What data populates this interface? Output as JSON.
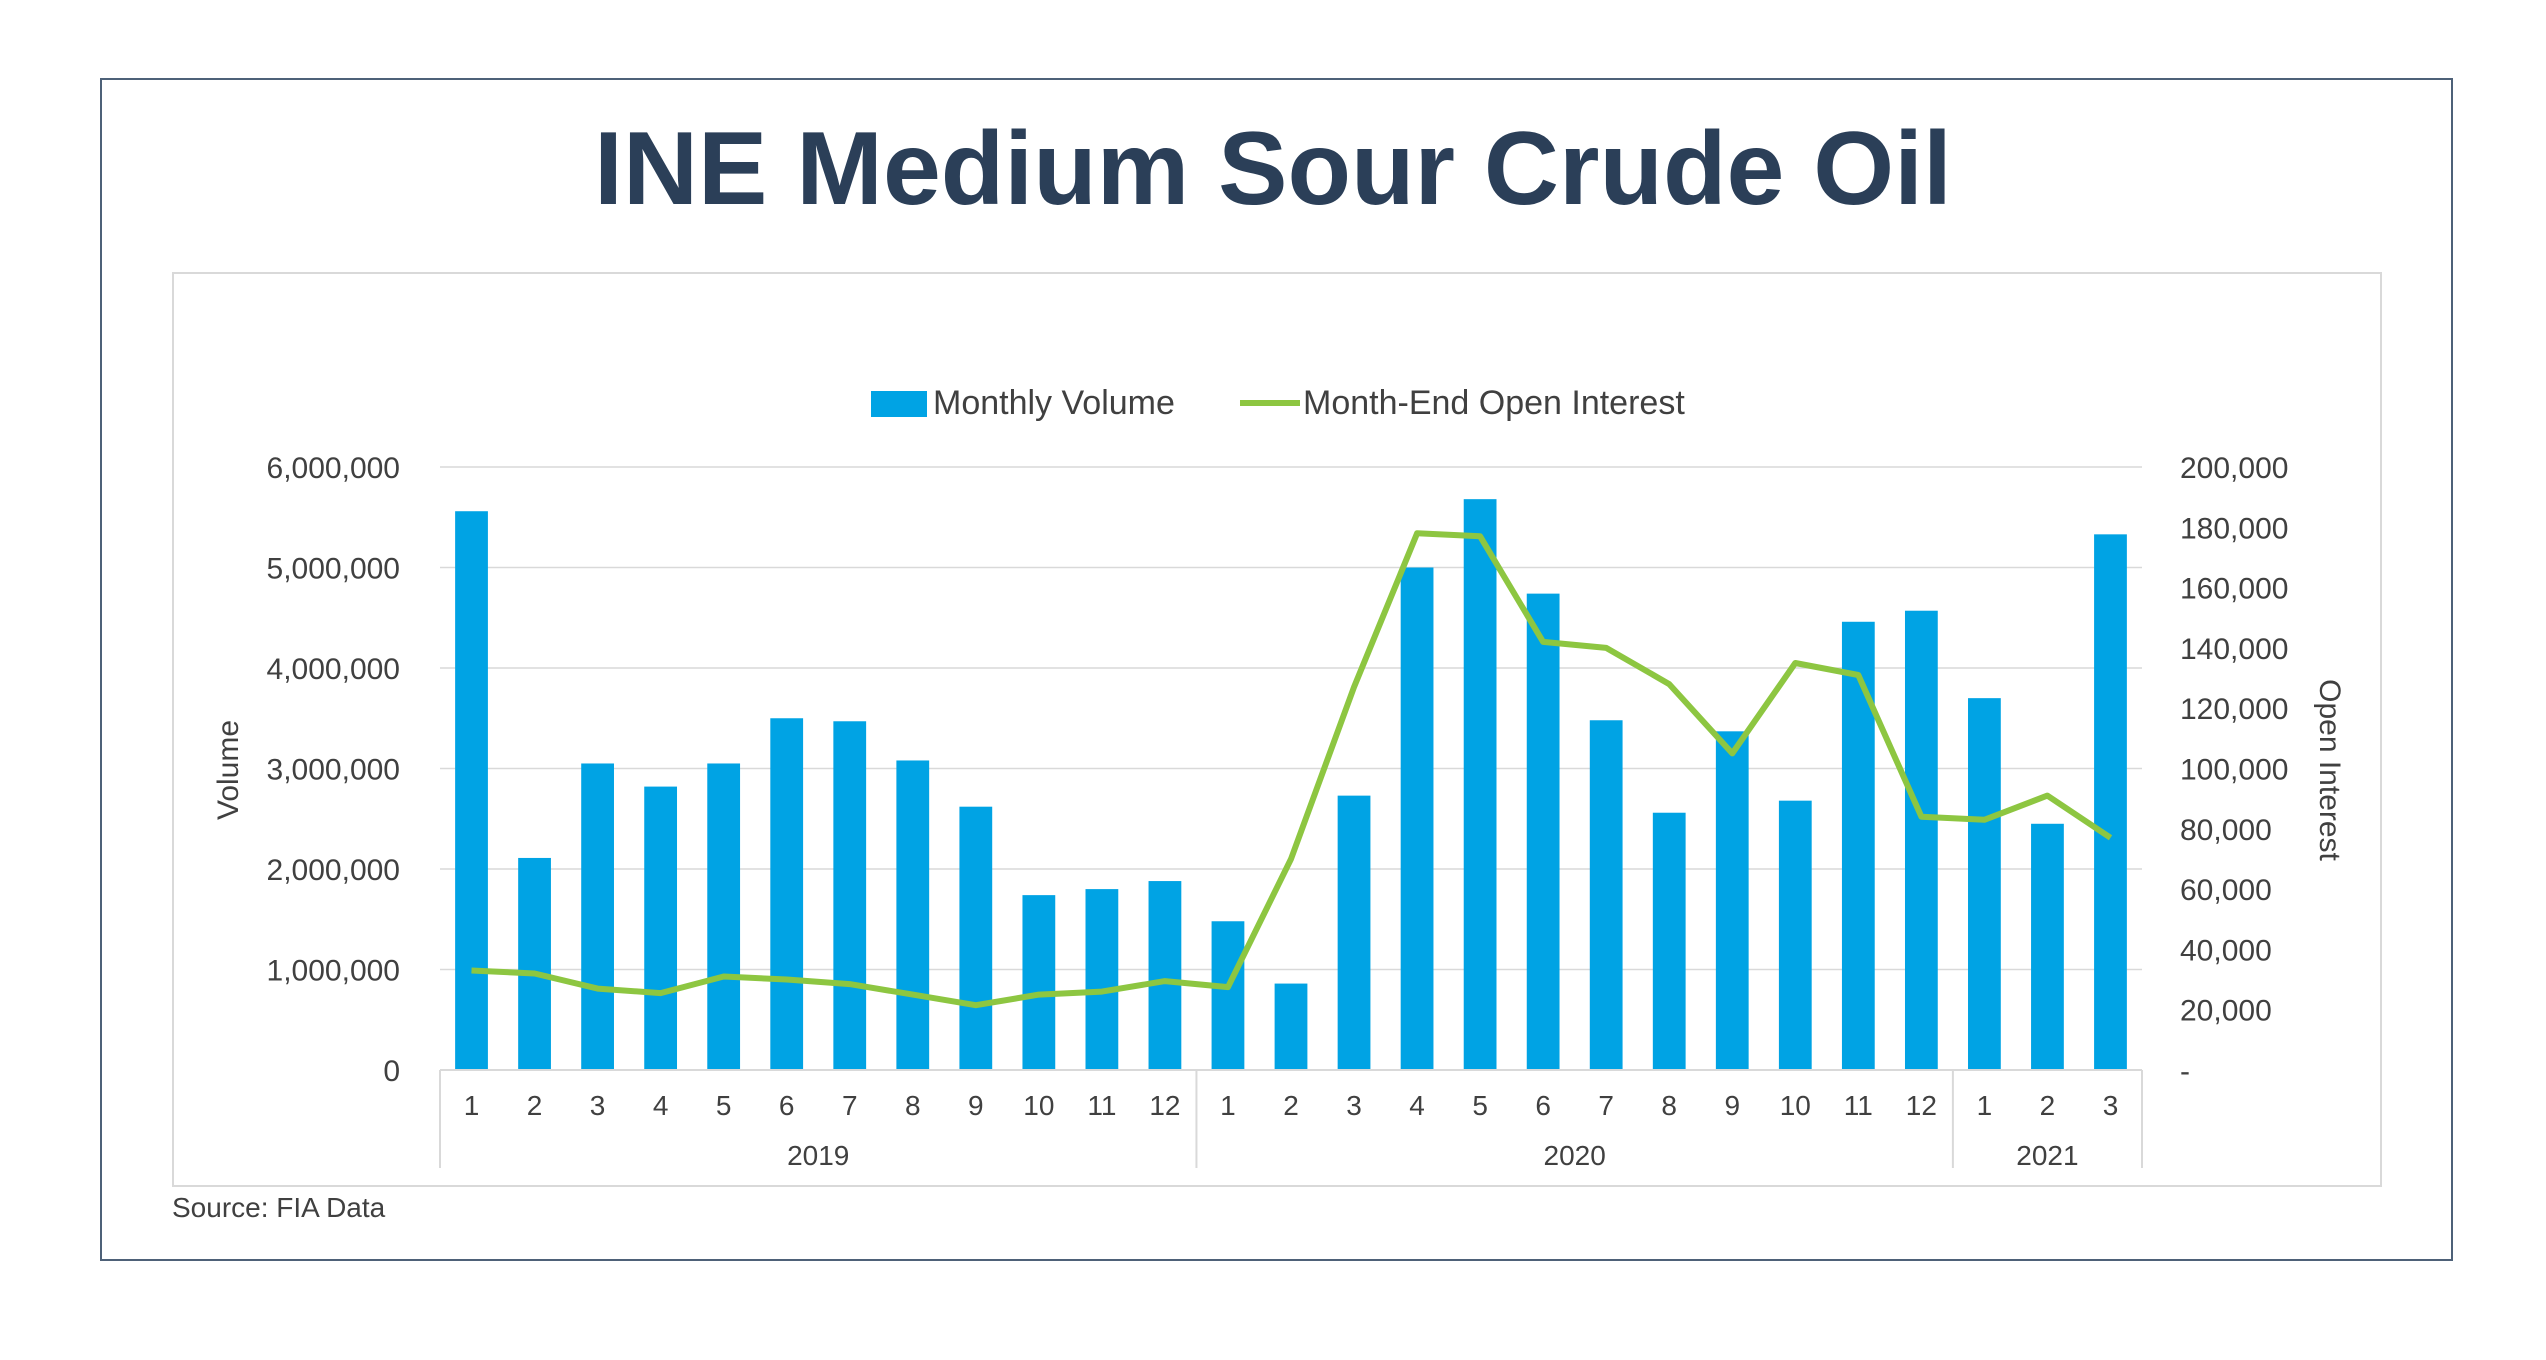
{
  "title": "INE Medium Sour Crude Oil",
  "source": "Source: FIA Data",
  "chart_data": {
    "type": "bar",
    "title": "INE Medium Sour Crude Oil",
    "categories": [
      "1",
      "2",
      "3",
      "4",
      "5",
      "6",
      "7",
      "8",
      "9",
      "10",
      "11",
      "12",
      "1",
      "2",
      "3",
      "4",
      "5",
      "6",
      "7",
      "8",
      "9",
      "10",
      "11",
      "12",
      "1",
      "2",
      "3"
    ],
    "groups": [
      {
        "label": "2019",
        "start": 0,
        "count": 12
      },
      {
        "label": "2020",
        "start": 12,
        "count": 12
      },
      {
        "label": "2021",
        "start": 24,
        "count": 3
      }
    ],
    "series": [
      {
        "name": "Monthly Volume",
        "type": "bar",
        "axis": "left",
        "color": "#00a3e4",
        "values": [
          5560000,
          2110000,
          3050000,
          2820000,
          3050000,
          3500000,
          3470000,
          3080000,
          2620000,
          1740000,
          1800000,
          1880000,
          1480000,
          860000,
          2730000,
          5000000,
          5680000,
          4740000,
          3480000,
          2560000,
          3370000,
          2680000,
          4460000,
          4570000,
          3700000,
          2450000,
          5330000
        ]
      },
      {
        "name": "Month-End Open Interest",
        "type": "line",
        "axis": "right",
        "color": "#8dc641",
        "values": [
          33000,
          32000,
          27000,
          25500,
          31000,
          30000,
          28500,
          25000,
          21500,
          25000,
          26000,
          29500,
          27500,
          70000,
          127000,
          178000,
          177000,
          142000,
          140000,
          128000,
          105000,
          135000,
          131000,
          84000,
          83000,
          91000,
          77000
        ]
      }
    ],
    "ylabel": "Volume",
    "y2label": "Open Interest",
    "ylim": [
      0,
      6000000
    ],
    "y2lim": [
      0,
      200000
    ],
    "yticks": [
      "0",
      "1,000,000",
      "2,000,000",
      "3,000,000",
      "4,000,000",
      "5,000,000",
      "6,000,000"
    ],
    "y2ticks": [
      "-",
      "20,000",
      "40,000",
      "60,000",
      "80,000",
      "100,000",
      "120,000",
      "140,000",
      "160,000",
      "180,000",
      "200,000"
    ],
    "grid": true,
    "legend": "top"
  },
  "colors": {
    "title": "#2b3f58",
    "frame": "#4e6178",
    "grid": "#d9d9d9"
  }
}
